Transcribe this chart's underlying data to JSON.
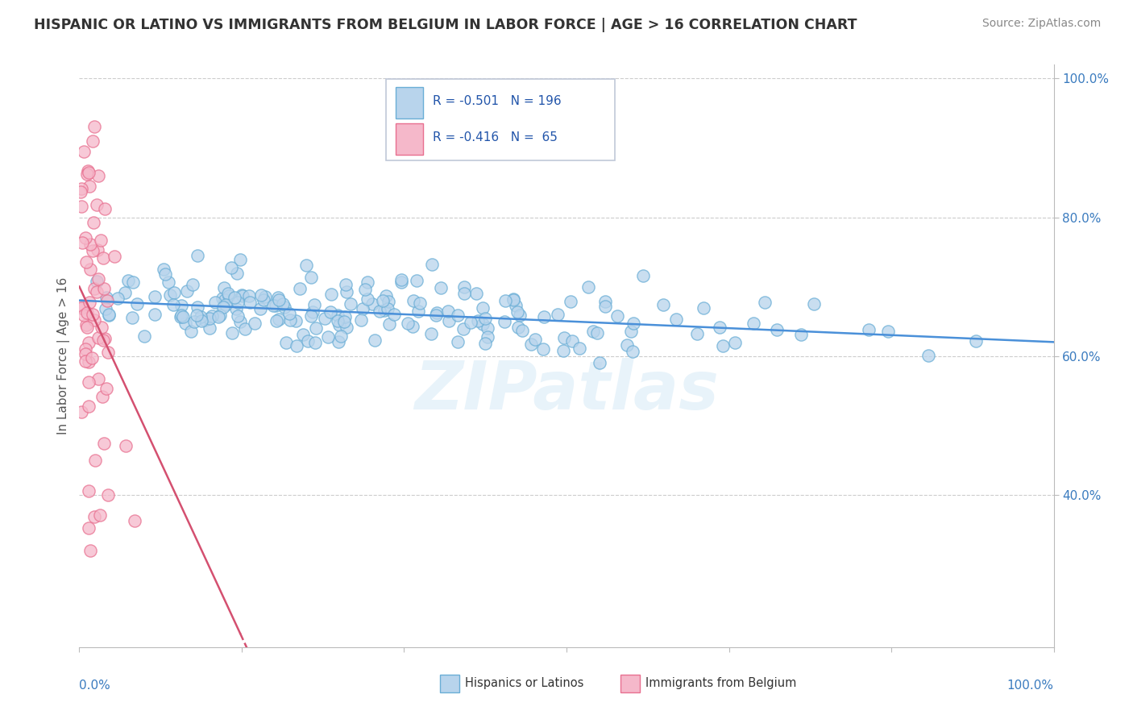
{
  "title": "HISPANIC OR LATINO VS IMMIGRANTS FROM BELGIUM IN LABOR FORCE | AGE > 16 CORRELATION CHART",
  "source": "Source: ZipAtlas.com",
  "ylabel": "In Labor Force | Age > 16",
  "watermark": "ZIPatlas",
  "series_blue": {
    "name": "Hispanics or Latinos",
    "scatter_color": "#b8d4ec",
    "edge_color": "#6aaed6",
    "line_color": "#4a90d9",
    "R": -0.501,
    "N": 196,
    "line_x0": 0.0,
    "line_x1": 1.0,
    "line_y0": 0.68,
    "line_y1": 0.62
  },
  "series_pink": {
    "name": "Immigrants from Belgium",
    "scatter_color": "#f5b8ca",
    "edge_color": "#e87090",
    "line_color": "#d45070",
    "R": -0.416,
    "N": 65,
    "line_x0": 0.0,
    "line_x1": 0.165,
    "line_y0": 0.7,
    "line_y1": 0.2
  },
  "xlim": [
    0.0,
    1.0
  ],
  "ylim": [
    0.18,
    1.02
  ],
  "yticks": [
    0.4,
    0.6,
    0.8,
    1.0
  ],
  "ytick_labels": [
    "40.0%",
    "60.0%",
    "80.0%",
    "100.0%"
  ],
  "xtick_positions": [
    0.0,
    0.1667,
    0.3333,
    0.5,
    0.6667,
    0.8333,
    1.0
  ],
  "background_color": "#ffffff",
  "grid_color": "#cccccc",
  "axis_color": "#bbbbbb",
  "title_color": "#333333",
  "title_fontsize": 12.5,
  "source_fontsize": 10,
  "seed_blue": 42,
  "seed_pink": 7
}
